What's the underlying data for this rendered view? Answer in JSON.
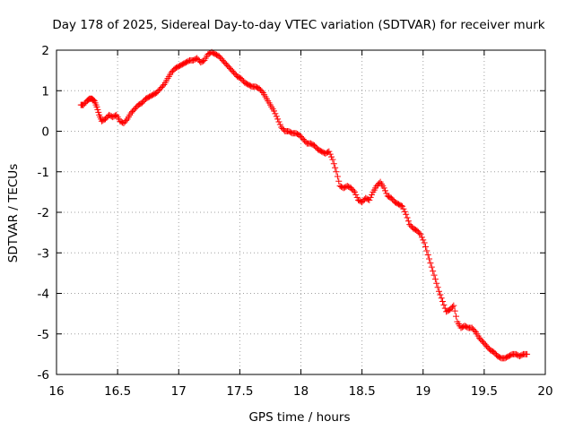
{
  "chart_data": {
    "type": "scatter",
    "title": "Day 178 of 2025, Sidereal Day-to-day VTEC variation (SDTVAR) for receiver murk",
    "xlabel": "GPS time / hours",
    "ylabel": "SDTVAR / TECUs",
    "xlim": [
      16,
      20
    ],
    "ylim": [
      -6,
      2
    ],
    "x_ticks": [
      16,
      16.5,
      17,
      17.5,
      18,
      18.5,
      19,
      19.5,
      20
    ],
    "x_tick_labels": [
      "16",
      "16.5",
      "17",
      "17.5",
      "18",
      "18.5",
      "19",
      "19.5",
      "20"
    ],
    "y_ticks": [
      -6,
      -5,
      -4,
      -3,
      -2,
      -1,
      0,
      1,
      2
    ],
    "y_tick_labels": [
      "-6",
      "-5",
      "-4",
      "-3",
      "-2",
      "-1",
      "0",
      "1",
      "2"
    ],
    "grid": true,
    "marker": "plus",
    "color": "#ff0000",
    "series": [
      {
        "name": "SDTVAR",
        "x": [
          16.2,
          16.22,
          16.25,
          16.27,
          16.29,
          16.31,
          16.33,
          16.35,
          16.37,
          16.4,
          16.43,
          16.46,
          16.49,
          16.52,
          16.55,
          16.58,
          16.61,
          16.64,
          16.67,
          16.7,
          16.73,
          16.76,
          16.79,
          16.82,
          16.85,
          16.88,
          16.91,
          16.94,
          16.97,
          17.0,
          17.03,
          17.06,
          17.09,
          17.12,
          17.15,
          17.18,
          17.21,
          17.24,
          17.27,
          17.3,
          17.33,
          17.36,
          17.39,
          17.42,
          17.45,
          17.48,
          17.51,
          17.54,
          17.57,
          17.6,
          17.63,
          17.66,
          17.69,
          17.72,
          17.75,
          17.78,
          17.81,
          17.84,
          17.87,
          17.9,
          17.93,
          17.96,
          17.99,
          18.02,
          18.05,
          18.08,
          18.11,
          18.14,
          18.17,
          18.2,
          18.23,
          18.26,
          18.29,
          18.32,
          18.35,
          18.38,
          18.41,
          18.44,
          18.47,
          18.5,
          18.53,
          18.56,
          18.59,
          18.62,
          18.65,
          18.68,
          18.71,
          18.74,
          18.77,
          18.8,
          18.83,
          18.86,
          18.89,
          18.92,
          18.95,
          18.98,
          19.01,
          19.04,
          19.07,
          19.1,
          19.13,
          19.16,
          19.19,
          19.22,
          19.25,
          19.28,
          19.31,
          19.34,
          19.37,
          19.4,
          19.43,
          19.46,
          19.49,
          19.52,
          19.55,
          19.58,
          19.61,
          19.64,
          19.67,
          19.7,
          19.73,
          19.76,
          19.79,
          19.82,
          19.85
        ],
        "y": [
          0.65,
          0.65,
          0.75,
          0.8,
          0.8,
          0.75,
          0.6,
          0.4,
          0.25,
          0.3,
          0.4,
          0.35,
          0.4,
          0.25,
          0.2,
          0.3,
          0.45,
          0.55,
          0.65,
          0.7,
          0.8,
          0.85,
          0.9,
          0.95,
          1.05,
          1.15,
          1.3,
          1.45,
          1.55,
          1.6,
          1.65,
          1.7,
          1.75,
          1.75,
          1.8,
          1.7,
          1.75,
          1.9,
          1.95,
          1.9,
          1.85,
          1.75,
          1.65,
          1.55,
          1.45,
          1.35,
          1.3,
          1.2,
          1.15,
          1.1,
          1.1,
          1.05,
          0.95,
          0.8,
          0.65,
          0.5,
          0.3,
          0.1,
          0.0,
          0.0,
          -0.05,
          -0.05,
          -0.1,
          -0.2,
          -0.3,
          -0.3,
          -0.35,
          -0.45,
          -0.5,
          -0.55,
          -0.5,
          -0.7,
          -1.0,
          -1.35,
          -1.4,
          -1.35,
          -1.4,
          -1.5,
          -1.7,
          -1.75,
          -1.65,
          -1.7,
          -1.5,
          -1.35,
          -1.25,
          -1.4,
          -1.6,
          -1.65,
          -1.75,
          -1.8,
          -1.85,
          -2.05,
          -2.3,
          -2.4,
          -2.45,
          -2.55,
          -2.75,
          -3.05,
          -3.35,
          -3.65,
          -3.95,
          -4.2,
          -4.45,
          -4.4,
          -4.3,
          -4.7,
          -4.85,
          -4.8,
          -4.85,
          -4.85,
          -4.95,
          -5.1,
          -5.2,
          -5.3,
          -5.4,
          -5.45,
          -5.55,
          -5.6,
          -5.6,
          -5.55,
          -5.5,
          -5.5,
          -5.55,
          -5.5,
          -5.5
        ]
      }
    ]
  }
}
